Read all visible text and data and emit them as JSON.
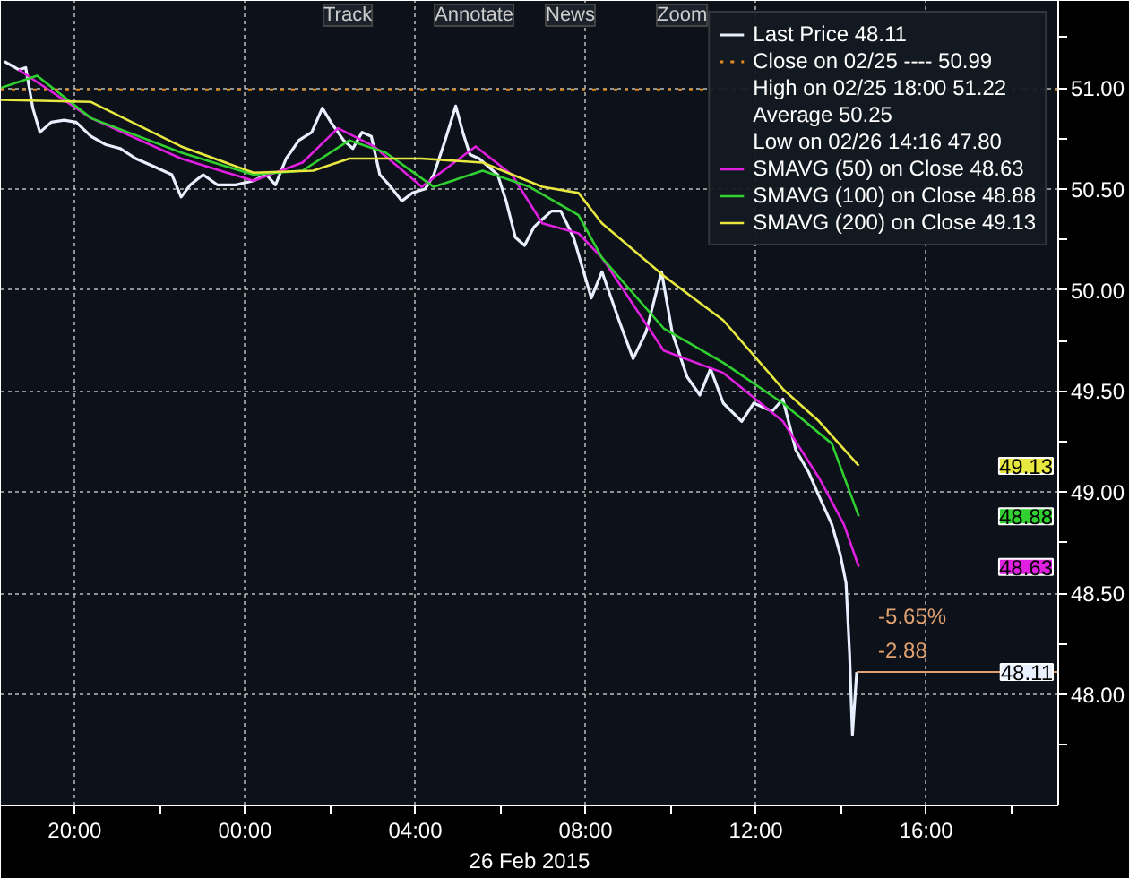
{
  "chart_data": {
    "type": "line",
    "xlim": [
      "2015-02-25T18:16",
      "2015-02-26T19:06"
    ],
    "ylim": [
      47.45,
      51.43
    ],
    "xticks": [
      {
        "value": "2015-02-25T20:00",
        "label": "20:00"
      },
      {
        "value": "2015-02-25T22:00",
        "label": null
      },
      {
        "value": "2015-02-26T00:00",
        "label": "00:00"
      },
      {
        "value": "2015-02-26T02:00",
        "label": null
      },
      {
        "value": "2015-02-26T04:00",
        "label": "04:00"
      },
      {
        "value": "2015-02-26T06:00",
        "label": null
      },
      {
        "value": "2015-02-26T08:00",
        "label": "08:00"
      },
      {
        "value": "2015-02-26T10:00",
        "label": null
      },
      {
        "value": "2015-02-26T12:00",
        "label": "12:00"
      },
      {
        "value": "2015-02-26T14:00",
        "label": null
      },
      {
        "value": "2015-02-26T16:00",
        "label": "16:00"
      },
      {
        "value": "2015-02-26T18:00",
        "label": null
      }
    ],
    "yticks": [
      {
        "value": 47.75,
        "label": null
      },
      {
        "value": 48,
        "label": "48.00"
      },
      {
        "value": 48.25,
        "label": null
      },
      {
        "value": 48.5,
        "label": "48.50"
      },
      {
        "value": 48.75,
        "label": null
      },
      {
        "value": 49,
        "label": "49.00"
      },
      {
        "value": 49.25,
        "label": null
      },
      {
        "value": 49.5,
        "label": "49.50"
      },
      {
        "value": 49.75,
        "label": null
      },
      {
        "value": 50,
        "label": "50.00"
      },
      {
        "value": 50.25,
        "label": null
      },
      {
        "value": 50.5,
        "label": "50.50"
      },
      {
        "value": 50.75,
        "label": null
      },
      {
        "value": 51,
        "label": "51.00"
      },
      {
        "value": 51.25,
        "label": null
      }
    ],
    "grid": true,
    "legend": "top right",
    "marker": "none",
    "line_style": "solid",
    "xlabel": "26 Feb 2015",
    "series": [
      {
        "name": "Last Price 48.11",
        "color": "#e8f0ff",
        "x": [
          "2015-02-25T18:21",
          "2015-02-25T18:41",
          "2015-02-25T18:51",
          "2015-02-25T19:01",
          "2015-02-25T19:11",
          "2015-02-25T19:27",
          "2015-02-25T19:45",
          "2015-02-25T20:02",
          "2015-02-25T20:23",
          "2015-02-25T20:43",
          "2015-02-25T21:04",
          "2015-02-25T21:26",
          "2015-02-25T21:52",
          "2015-02-25T22:17",
          "2015-02-25T22:30",
          "2015-02-25T22:43",
          "2015-02-25T23:01",
          "2015-02-25T23:21",
          "2015-02-25T23:47",
          "2015-02-26T00:12",
          "2015-02-26T00:30",
          "2015-02-26T00:43",
          "2015-02-26T00:58",
          "2015-02-26T01:16",
          "2015-02-26T01:34",
          "2015-02-26T01:49",
          "2015-02-26T02:01",
          "2015-02-26T02:19",
          "2015-02-26T02:32",
          "2015-02-26T02:45",
          "2015-02-26T02:58",
          "2015-02-26T03:10",
          "2015-02-26T03:23",
          "2015-02-26T03:41",
          "2015-02-26T03:56",
          "2015-02-26T04:14",
          "2015-02-26T04:26",
          "2015-02-26T04:42",
          "2015-02-26T04:57",
          "2015-02-26T05:07",
          "2015-02-26T05:17",
          "2015-02-26T05:30",
          "2015-02-26T05:43",
          "2015-02-26T05:56",
          "2015-02-26T06:08",
          "2015-02-26T06:21",
          "2015-02-26T06:34",
          "2015-02-26T06:47",
          "2015-02-26T06:59",
          "2015-02-26T07:12",
          "2015-02-26T07:25",
          "2015-02-26T07:43",
          "2015-02-26T08:08",
          "2015-02-26T08:23",
          "2015-02-26T08:49",
          "2015-02-26T09:07",
          "2015-02-26T09:25",
          "2015-02-26T09:47",
          "2015-02-26T10:02",
          "2015-02-26T10:23",
          "2015-02-26T10:41",
          "2015-02-26T10:56",
          "2015-02-26T11:14",
          "2015-02-26T11:40",
          "2015-02-26T11:57",
          "2015-02-26T12:23",
          "2015-02-26T12:38",
          "2015-02-26T12:56",
          "2015-02-26T13:14",
          "2015-02-26T13:29",
          "2015-02-26T13:47",
          "2015-02-26T13:59",
          "2015-02-26T14:07",
          "2015-02-26T14:12",
          "2015-02-26T14:16",
          "2015-02-26T14:22"
        ],
        "values": [
          51.13,
          51.09,
          51.1,
          50.9,
          50.78,
          50.83,
          50.84,
          50.83,
          50.76,
          50.72,
          50.7,
          50.65,
          50.61,
          50.57,
          50.46,
          50.52,
          50.57,
          50.52,
          50.52,
          50.54,
          50.57,
          50.52,
          50.65,
          50.74,
          50.78,
          50.9,
          50.83,
          50.74,
          50.7,
          50.78,
          50.76,
          50.57,
          50.52,
          50.44,
          50.48,
          50.5,
          50.57,
          50.74,
          50.91,
          50.78,
          50.67,
          50.65,
          50.61,
          50.57,
          50.44,
          50.26,
          50.22,
          50.31,
          50.35,
          50.39,
          50.39,
          50.26,
          49.96,
          50.09,
          49.83,
          49.66,
          49.79,
          50.09,
          49.79,
          49.57,
          49.48,
          49.61,
          49.44,
          49.35,
          49.44,
          49.4,
          49.46,
          49.21,
          49.1,
          48.98,
          48.84,
          48.69,
          48.55,
          48.2,
          47.8,
          48.11
        ]
      },
      {
        "name": "SMAVG (50) on Close 48.63",
        "color": "#e020e0",
        "x": [
          "2015-02-25T18:41",
          "2015-02-25T20:23",
          "2015-02-25T22:30",
          "2015-02-26T00:12",
          "2015-02-26T01:21",
          "2015-02-26T02:11",
          "2015-02-26T03:02",
          "2015-02-26T04:09",
          "2015-02-26T05:25",
          "2015-02-26T06:16",
          "2015-02-26T06:59",
          "2015-02-26T07:50",
          "2015-02-26T08:23",
          "2015-02-26T09:50",
          "2015-02-26T11:14",
          "2015-02-26T12:38",
          "2015-02-26T13:29",
          "2015-02-26T14:04",
          "2015-02-26T14:25"
        ],
        "values": [
          51.09,
          50.85,
          50.65,
          50.54,
          50.63,
          50.8,
          50.71,
          50.51,
          50.71,
          50.57,
          50.33,
          50.28,
          50.16,
          49.7,
          49.59,
          49.35,
          49.07,
          48.84,
          48.63
        ]
      },
      {
        "name": "SMAVG (100) on Close 48.88",
        "color": "#30d030",
        "x": [
          "2015-02-25T18:16",
          "2015-02-25T19:07",
          "2015-02-25T20:23",
          "2015-02-25T22:30",
          "2015-02-26T00:12",
          "2015-02-26T01:21",
          "2015-02-26T02:27",
          "2015-02-26T03:18",
          "2015-02-26T04:26",
          "2015-02-26T05:35",
          "2015-02-26T06:41",
          "2015-02-26T07:50",
          "2015-02-26T08:23",
          "2015-02-26T09:50",
          "2015-02-26T11:14",
          "2015-02-26T12:38",
          "2015-02-26T13:47",
          "2015-02-26T14:25"
        ],
        "values": [
          51.0,
          51.06,
          50.85,
          50.68,
          50.57,
          50.59,
          50.74,
          50.68,
          50.51,
          50.59,
          50.51,
          50.37,
          50.16,
          49.81,
          49.64,
          49.44,
          49.24,
          48.88
        ]
      },
      {
        "name": "SMAVG (200) on Close 49.13",
        "color": "#e8e840",
        "x": [
          "2015-02-25T18:16",
          "2015-02-25T20:23",
          "2015-02-25T22:30",
          "2015-02-26T00:12",
          "2015-02-26T01:36",
          "2015-02-26T02:27",
          "2015-02-26T04:09",
          "2015-02-26T05:35",
          "2015-02-26T06:59",
          "2015-02-26T07:50",
          "2015-02-26T08:23",
          "2015-02-26T09:50",
          "2015-02-26T11:14",
          "2015-02-26T12:38",
          "2015-02-26T13:29",
          "2015-02-26T14:25"
        ],
        "values": [
          50.94,
          50.93,
          50.71,
          50.58,
          50.59,
          50.65,
          50.65,
          50.63,
          50.51,
          50.48,
          50.33,
          50.07,
          49.85,
          49.51,
          49.35,
          49.13
        ]
      }
    ],
    "ref_lines": [
      {
        "axis": "y",
        "value": 50.99,
        "label": "Close on 02/25 ---- 50.99",
        "color": "#e08a20",
        "line_style": "dotted"
      },
      {
        "axis": "y",
        "value": 48.11,
        "color": "#e0a070",
        "line_style": "solid"
      }
    ],
    "annotations": [
      "Track",
      "Annotate",
      "News",
      "Zoom",
      "High on 02/25 18:00 51.22",
      "Average 50.25",
      "Low on 02/26 14:16 47.80",
      "49.13",
      "48.88",
      "48.63",
      {
        "text": "-5.65%",
        "x": "2015-02-26T14:22",
        "y": 48.11
      },
      {
        "text": "-2.88",
        "x": "2015-02-26T14:22",
        "y": 48.11
      },
      {
        "text": "48.11",
        "y": 48.11
      }
    ]
  }
}
